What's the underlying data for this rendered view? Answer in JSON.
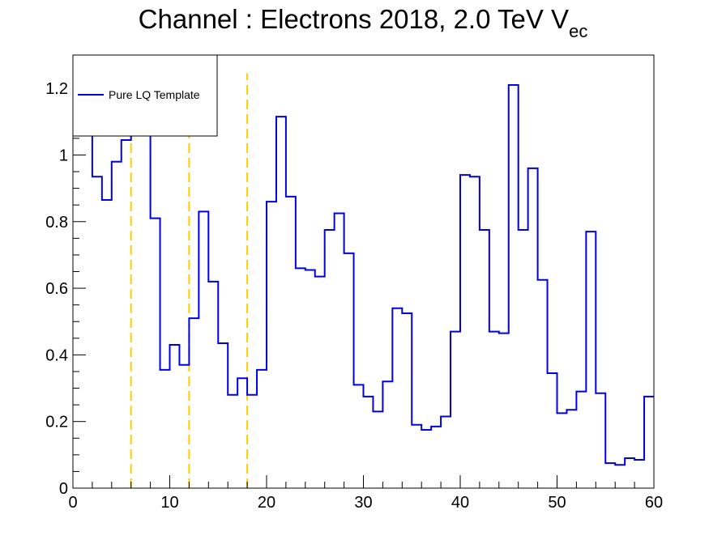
{
  "chart_data": {
    "type": "line",
    "title": "Channel : Electrons 2018, 2.0 TeV V",
    "title_subscript": "ec",
    "xlabel": "",
    "ylabel": "",
    "xlim": [
      0,
      60
    ],
    "ylim": [
      0,
      1.3
    ],
    "x_ticks": [
      0,
      10,
      20,
      30,
      40,
      50,
      60
    ],
    "y_ticks": [
      0,
      0.2,
      0.4,
      0.6,
      0.8,
      1,
      1.2
    ],
    "x_tick_labels": [
      "0",
      "10",
      "20",
      "30",
      "40",
      "50",
      "60"
    ],
    "y_tick_labels": [
      "0",
      "0.2",
      "0.4",
      "0.6",
      "0.8",
      "1",
      "1.2"
    ],
    "grid": false,
    "legend_position": "top-left",
    "series": [
      {
        "name": "Pure LQ Template",
        "style": "step",
        "color": "#0000e0",
        "bin_width": 1,
        "values": [
          1.06,
          1.06,
          0.935,
          0.865,
          0.98,
          1.045,
          1.06,
          1.06,
          0.81,
          0.355,
          0.43,
          0.37,
          0.51,
          0.83,
          0.62,
          0.435,
          0.28,
          0.33,
          0.28,
          0.355,
          0.86,
          1.115,
          0.875,
          0.66,
          0.655,
          0.635,
          0.775,
          0.825,
          0.705,
          0.31,
          0.275,
          0.23,
          0.32,
          0.54,
          0.525,
          0.19,
          0.175,
          0.185,
          0.215,
          0.47,
          0.94,
          0.935,
          0.775,
          0.47,
          0.465,
          1.21,
          0.775,
          0.96,
          0.625,
          0.345,
          0.225,
          0.235,
          0.29,
          0.77,
          0.285,
          0.075,
          0.07,
          0.09,
          0.085,
          0.275
        ]
      }
    ],
    "vertical_lines": [
      {
        "x": 6,
        "style": "dashed",
        "color": "#ffcc00",
        "y_top": 1.245
      },
      {
        "x": 12,
        "style": "dashed",
        "color": "#ffcc00",
        "y_top": 1.06
      },
      {
        "x": 18,
        "style": "dashed",
        "color": "#ffcc00",
        "y_top": 1.245
      }
    ]
  }
}
